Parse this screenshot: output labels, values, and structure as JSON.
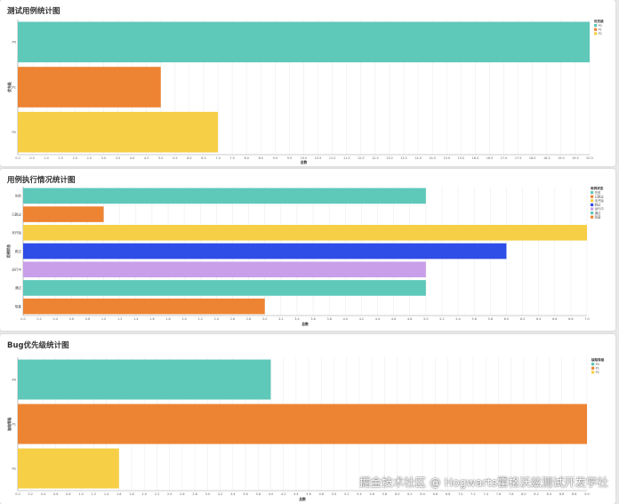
{
  "watermark": "掘金技术社区 @ Hogwarts霍格沃兹测试开发学社",
  "chart_data": [
    {
      "type": "bar",
      "orientation": "horizontal",
      "title": "测试用例统计图",
      "xlabel": "总数",
      "ylabel": "优先级",
      "categories": [
        "P0",
        "P1",
        "P2"
      ],
      "values": [
        20,
        5,
        7
      ],
      "colors": [
        "#5ec8b9",
        "#ed8433",
        "#f6cf47"
      ],
      "xlim": [
        0,
        20
      ],
      "tick_step": 0.5,
      "tick_decimals": 1,
      "legend_title": "优先级",
      "legend": [
        "P0",
        "P1",
        "P2"
      ],
      "legend_position": "right"
    },
    {
      "type": "bar",
      "orientation": "horizontal",
      "title": "用例执行情况统计图",
      "xlabel": "总数",
      "ylabel": "用例状态",
      "categories": [
        "失败",
        "已跳过",
        "未开始",
        "跳过",
        "运行中",
        "通过",
        "阻塞"
      ],
      "values": [
        5,
        1,
        7,
        6,
        5,
        5,
        3
      ],
      "colors": [
        "#5ec8b9",
        "#ed8433",
        "#f6cf47",
        "#2f4de7",
        "#c99fe9",
        "#5ec8b9",
        "#ed8433"
      ],
      "xlim": [
        0,
        7
      ],
      "tick_step": 0.2,
      "tick_decimals": 1,
      "legend_title": "用例状态",
      "legend": [
        "失败",
        "已跳过",
        "未开始",
        "跳过",
        "运行中",
        "通过",
        "阻塞"
      ],
      "legend_position": "right"
    },
    {
      "type": "bar",
      "orientation": "horizontal",
      "title": "Bug优先级统计图",
      "xlabel": "总数",
      "ylabel": "缺陷等级",
      "categories": [
        "P0",
        "P1",
        "P2"
      ],
      "values": [
        4,
        9,
        1.6
      ],
      "colors": [
        "#5ec8b9",
        "#ed8433",
        "#f6cf47"
      ],
      "xlim": [
        0,
        9
      ],
      "tick_step": 0.2,
      "tick_decimals": 1,
      "legend_title": "缺陷等级",
      "legend": [
        "P0",
        "P1",
        "P2"
      ],
      "legend_position": "right"
    }
  ]
}
